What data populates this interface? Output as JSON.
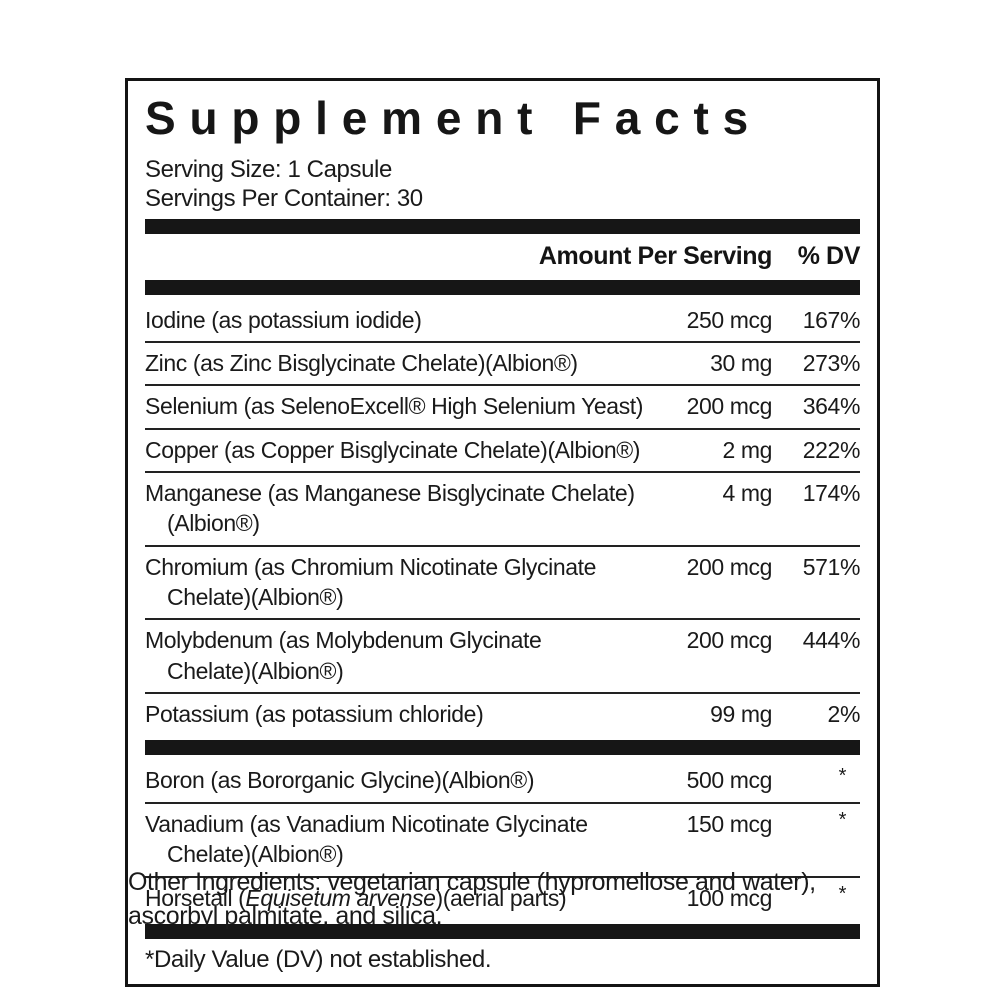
{
  "colors": {
    "ink": "#141414",
    "background": "#ffffff",
    "divider": "#222222"
  },
  "label": {
    "title": "Supplement Facts",
    "serving_size": "Serving Size: 1 Capsule",
    "servings_per_container": "Servings Per Container: 30",
    "columns": {
      "amount": "Amount Per Serving",
      "dv": "% DV"
    },
    "sections": [
      {
        "rows": [
          {
            "name": [
              {
                "t": "Iodine (as potassium iodide)"
              }
            ],
            "amount": "250 mcg",
            "dv": "167%"
          },
          {
            "name": [
              {
                "t": "Zinc (as Zinc Bisglycinate Chelate)(Albion®)"
              }
            ],
            "amount": "30 mg",
            "dv": "273%"
          },
          {
            "name": [
              {
                "t": "Selenium (as SelenoExcell® High Selenium Yeast)"
              }
            ],
            "amount": "200 mcg",
            "dv": "364%"
          },
          {
            "name": [
              {
                "t": "Copper (as Copper Bisglycinate Chelate)(Albion®)"
              }
            ],
            "amount": "2 mg",
            "dv": "222%"
          },
          {
            "name": [
              {
                "t": "Manganese (as Manganese Bisglycinate Chelate)"
              }
            ],
            "name2": [
              {
                "t": "(Albion®)"
              }
            ],
            "amount": "4 mg",
            "dv": "174%"
          },
          {
            "name": [
              {
                "t": "Chromium (as Chromium Nicotinate Glycinate"
              }
            ],
            "name2": [
              {
                "t": "Chelate)(Albion®)"
              }
            ],
            "amount": "200 mcg",
            "dv": "571%"
          },
          {
            "name": [
              {
                "t": "Molybdenum (as Molybdenum Glycinate"
              }
            ],
            "name2": [
              {
                "t": "Chelate)(Albion®)"
              }
            ],
            "amount": "200 mcg",
            "dv": "444%"
          },
          {
            "name": [
              {
                "t": "Potassium (as potassium chloride)"
              }
            ],
            "amount": "99 mg",
            "dv": "2%"
          }
        ]
      },
      {
        "rows": [
          {
            "name": [
              {
                "t": "Boron (as Bororganic Glycine)(Albion®)"
              }
            ],
            "amount": "500 mcg",
            "dv": "*"
          },
          {
            "name": [
              {
                "t": "Vanadium (as Vanadium Nicotinate Glycinate"
              }
            ],
            "name2": [
              {
                "t": "Chelate)(Albion®)"
              }
            ],
            "amount": "150 mcg",
            "dv": "*"
          },
          {
            "name": [
              {
                "t": "Horsetail ("
              },
              {
                "t": "Equisetum arvense",
                "i": true
              },
              {
                "t": ")(aerial parts)"
              }
            ],
            "amount": "100 mcg",
            "dv": "*"
          }
        ]
      }
    ],
    "footnote": "*Daily Value (DV) not established."
  },
  "other_ingredients": "Other Ingredients: vegetarian capsule (hypromellose and water), ascorbyl palmitate, and silica."
}
